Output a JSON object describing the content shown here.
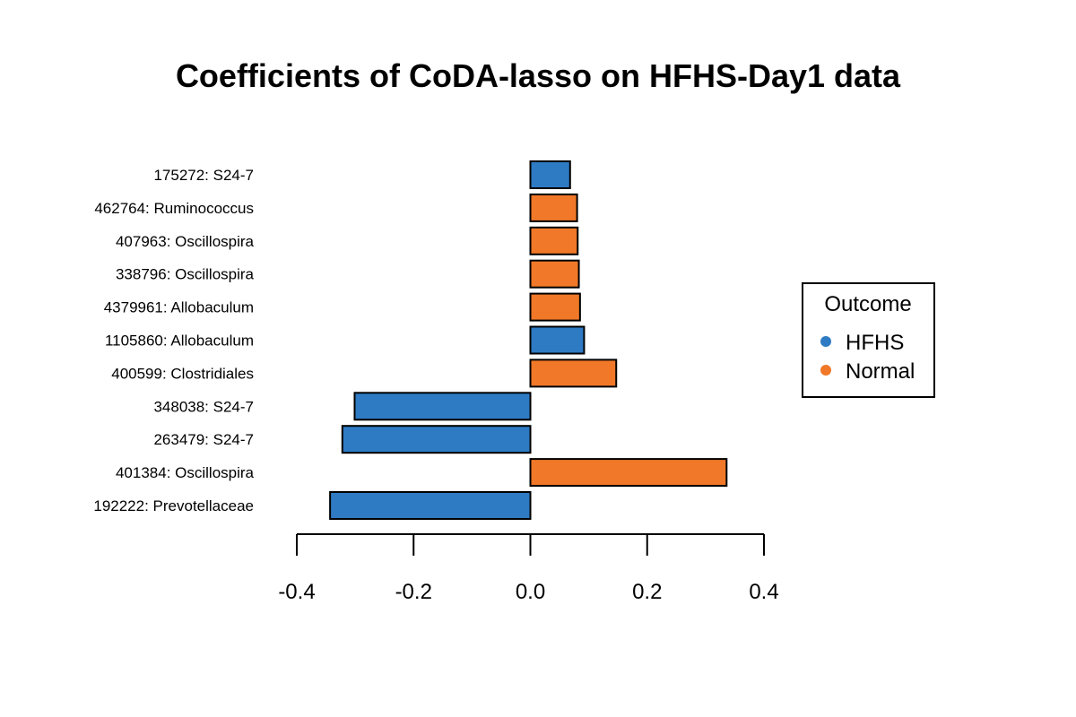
{
  "chart_data": {
    "type": "bar",
    "orientation": "horizontal",
    "title": "Coefficients of CoDA-lasso on HFHS-Day1 data",
    "xlabel": "",
    "ylabel": "",
    "xlim": [
      -0.4,
      0.4
    ],
    "x_ticks": [
      "-0.4",
      "-0.2",
      "0.0",
      "0.2",
      "0.4"
    ],
    "x_tick_values": [
      -0.4,
      -0.2,
      0.0,
      0.2,
      0.4
    ],
    "categories": [
      "192222: Prevotellaceae",
      "401384: Oscillospira",
      "263479: S24-7",
      "348038: S24-7",
      "400599: Clostridiales",
      "1105860: Allobaculum",
      "4379961: Allobaculum",
      "338796: Oscillospira",
      "407963: Oscillospira",
      "462764: Ruminococcus",
      "175272: S24-7"
    ],
    "values": [
      -0.343,
      0.336,
      -0.322,
      -0.301,
      0.147,
      0.092,
      0.085,
      0.083,
      0.081,
      0.08,
      0.068
    ],
    "groups": [
      "HFHS",
      "Normal",
      "HFHS",
      "HFHS",
      "Normal",
      "HFHS",
      "Normal",
      "Normal",
      "Normal",
      "Normal",
      "HFHS"
    ],
    "colors": {
      "HFHS": "#2E7BC4",
      "Normal": "#F07828"
    },
    "grid": false,
    "legend": {
      "title": "Outcome",
      "position": "right",
      "entries": [
        {
          "label": "HFHS",
          "color": "#2E7BC4"
        },
        {
          "label": "Normal",
          "color": "#F07828"
        }
      ]
    }
  }
}
